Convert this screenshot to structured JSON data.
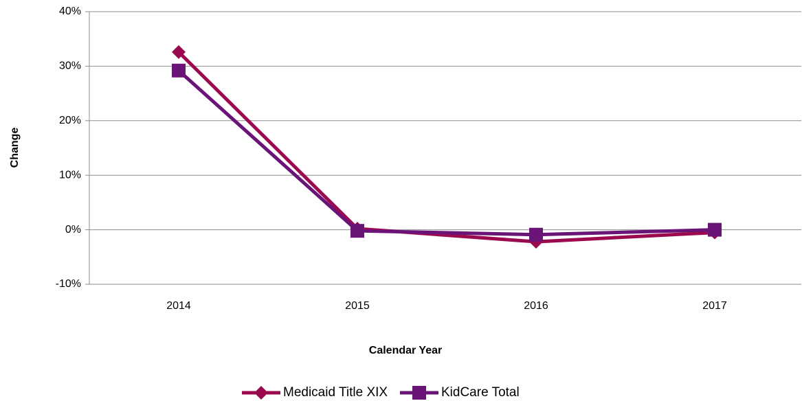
{
  "chart_data": {
    "type": "line",
    "categories": [
      "2014",
      "2015",
      "2016",
      "2017"
    ],
    "series": [
      {
        "name": "Medicaid Title XIX",
        "color": "#9b0a4e",
        "marker": "diamond",
        "values": [
          32.6,
          0.2,
          -2.2,
          -0.5
        ]
      },
      {
        "name": "KidCare Total",
        "color": "#6b1478",
        "marker": "square",
        "values": [
          29.2,
          -0.2,
          -0.9,
          0.0
        ]
      }
    ],
    "ylim": [
      -10,
      40
    ],
    "yticks": [
      {
        "value": -10,
        "label": "-10%"
      },
      {
        "value": 0,
        "label": "0%"
      },
      {
        "value": 10,
        "label": "10%"
      },
      {
        "value": 20,
        "label": "20%"
      },
      {
        "value": 30,
        "label": "30%"
      },
      {
        "value": 40,
        "label": "40%"
      }
    ],
    "xlabel": "Calendar Year",
    "ylabel": "Change",
    "grid": true,
    "legend": "bottom"
  }
}
